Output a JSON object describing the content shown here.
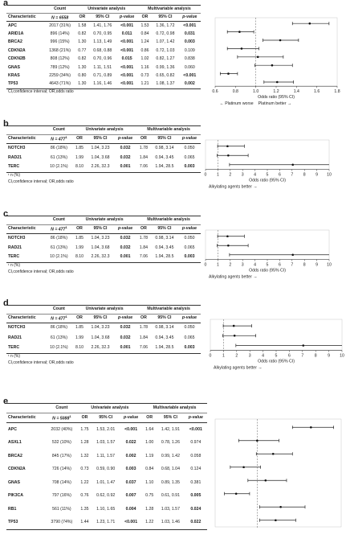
{
  "panels": [
    {
      "label": "a",
      "n_label": "N = 6558",
      "n_sup": "",
      "header": {
        "characteristic": "Characteristic",
        "count": "Count",
        "univariate": "Univariate analysis",
        "multivariable": "Multivariable analysis",
        "or": "OR",
        "ci": "95% CI",
        "pvalue": "p-value"
      },
      "rows": [
        {
          "name": "APC",
          "count": "2017 (31%)",
          "u_or": "1.58",
          "u_ci": "1.41, 1.76",
          "u_p": "<0.001",
          "u_p_bold": true,
          "m_or": "1.53",
          "m_ci": "1.36, 1.72",
          "m_p": "<0.001",
          "m_p_bold": true
        },
        {
          "name": "ARID1A",
          "count": "896 (14%)",
          "u_or": "0.82",
          "u_ci": "0.70, 0.95",
          "u_p": "0.011",
          "u_p_bold": true,
          "m_or": "0.84",
          "m_ci": "0.72, 0.98",
          "m_p": "0.031",
          "m_p_bold": true
        },
        {
          "name": "BRCA2",
          "count": "996 (15%)",
          "u_or": "1.30",
          "u_ci": "1.13, 1.49",
          "u_p": "<0.001",
          "u_p_bold": true,
          "m_or": "1.24",
          "m_ci": "1.07, 1.42",
          "m_p": "0.003",
          "m_p_bold": true
        },
        {
          "name": "CDKN2A",
          "count": "1368 (21%)",
          "u_or": "0.77",
          "u_ci": "0.68, 0.88",
          "u_p": "<0.001",
          "u_p_bold": true,
          "m_or": "0.86",
          "m_ci": "0.72, 1.03",
          "m_p": "0.109",
          "m_p_bold": false
        },
        {
          "name": "CDKN2B",
          "count": "808 (12%)",
          "u_or": "0.82",
          "u_ci": "0.70, 0.96",
          "u_p": "0.015",
          "u_p_bold": true,
          "m_or": "1.02",
          "m_ci": "0.82, 1.27",
          "m_p": "0.838",
          "m_p_bold": false
        },
        {
          "name": "GNAS",
          "count": "789 (12%)",
          "u_or": "1.30",
          "u_ci": "1.11, 1.51",
          "u_p": "<0.001",
          "u_p_bold": true,
          "m_or": "1.16",
          "m_ci": "0.99, 1.36",
          "m_p": "0.060",
          "m_p_bold": false
        },
        {
          "name": "KRAS",
          "count": "2259 (34%)",
          "u_or": "0.80",
          "u_ci": "0.71, 0.89",
          "u_p": "<0.001",
          "u_p_bold": true,
          "m_or": "0.73",
          "m_ci": "0.65, 0.82",
          "m_p": "<0.001",
          "m_p_bold": true
        },
        {
          "name": "TP53",
          "count": "4643 (71%)",
          "u_or": "1.30",
          "u_ci": "1.16, 1.46",
          "u_p": "<0.001",
          "u_p_bold": true,
          "m_or": "1.21",
          "m_ci": "1.08, 1.37",
          "m_p": "0.002",
          "m_p_bold": true
        }
      ],
      "footnotes": [
        "CI,confidence interval; OR,odds ratio"
      ],
      "axis_label": "Odds ratio (95% CI)",
      "direction_left": "← Platinum worse",
      "direction_right": "Platinum better →"
    },
    {
      "label": "b",
      "n_label": "N = 477",
      "n_sup": "1",
      "header": {
        "characteristic": "Characteristic",
        "count": "Count",
        "univariate": "Univariate analysis",
        "multivariable": "Multivariable analysis",
        "or": "OR",
        "ci": "95% CI",
        "pvalue": "p-value"
      },
      "rows": [
        {
          "name": "NOTCH3",
          "count": "86 (18%)",
          "u_or": "1.85",
          "u_ci": "1.04, 3.23",
          "u_p": "0.032",
          "u_p_bold": true,
          "m_or": "1.78",
          "m_ci": "0.98, 3.14",
          "m_p": "0.050",
          "m_p_bold": false
        },
        {
          "name": "RAD21",
          "count": "61 (13%)",
          "u_or": "1.99",
          "u_ci": "1.04, 3.68",
          "u_p": "0.032",
          "u_p_bold": true,
          "m_or": "1.84",
          "m_ci": "0.94, 3.45",
          "m_p": "0.065",
          "m_p_bold": false
        },
        {
          "name": "TERC",
          "count": "10 (2.1%)",
          "u_or": "8.10",
          "u_ci": "2.26, 32.3",
          "u_p": "0.001",
          "u_p_bold": true,
          "m_or": "7.06",
          "m_ci": "1.94, 28.5",
          "m_p": "0.003",
          "m_p_bold": true
        }
      ],
      "footnotes": [
        "¹ n (%)",
        "CI,confidence interval; OR,odds ratio"
      ],
      "axis_label": "Odds ratio (95% CI)",
      "direction_left": "",
      "direction_right": "Alkylating agents better →"
    },
    {
      "label": "c",
      "n_label": "N = 477",
      "n_sup": "1",
      "header": {
        "characteristic": "Characteristic",
        "count": "Count",
        "univariate": "Univariate analysis",
        "multivariable": "Multivariable analysis",
        "or": "OR",
        "ci": "95% CI",
        "pvalue": "p-value"
      },
      "rows": [
        {
          "name": "NOTCH3",
          "count": "86 (18%)",
          "u_or": "1.85",
          "u_ci": "1.04, 3.23",
          "u_p": "0.032",
          "u_p_bold": true,
          "m_or": "1.78",
          "m_ci": "0.98, 3.14",
          "m_p": "0.050",
          "m_p_bold": false
        },
        {
          "name": "RAD21",
          "count": "61 (13%)",
          "u_or": "1.99",
          "u_ci": "1.04, 3.68",
          "u_p": "0.032",
          "u_p_bold": true,
          "m_or": "1.84",
          "m_ci": "0.94, 3.45",
          "m_p": "0.065",
          "m_p_bold": false
        },
        {
          "name": "TERC",
          "count": "10 (2.1%)",
          "u_or": "8.10",
          "u_ci": "2.26, 32.3",
          "u_p": "0.001",
          "u_p_bold": true,
          "m_or": "7.06",
          "m_ci": "1.94, 28.5",
          "m_p": "0.003",
          "m_p_bold": true
        }
      ],
      "footnotes": [
        "¹ n (%)",
        "CI,confidence interval; OR,odds ratio"
      ],
      "axis_label": "Odds ratio (95% CI)",
      "direction_left": "",
      "direction_right": "Alkylating agents better →"
    },
    {
      "label": "d",
      "n_label": "N = 477",
      "n_sup": "1",
      "header": {
        "characteristic": "Characteristic",
        "count": "Count",
        "univariate": "Univariate analysis",
        "multivariable": "Multivariable analysis",
        "or": "OR",
        "ci": "95% CI",
        "pvalue": "p-value"
      },
      "rows": [
        {
          "name": "NOTCH3",
          "count": "86 (18%)",
          "u_or": "1.85",
          "u_ci": "1.04, 3.23",
          "u_p": "0.032",
          "u_p_bold": true,
          "m_or": "1.78",
          "m_ci": "0.98, 3.14",
          "m_p": "0.050",
          "m_p_bold": false
        },
        {
          "name": "RAD21",
          "count": "61 (13%)",
          "u_or": "1.99",
          "u_ci": "1.04, 3.68",
          "u_p": "0.032",
          "u_p_bold": true,
          "m_or": "1.84",
          "m_ci": "0.94, 3.45",
          "m_p": "0.065",
          "m_p_bold": false
        },
        {
          "name": "TERC",
          "count": "10 (2.1%)",
          "u_or": "8.10",
          "u_ci": "2.26, 32.3",
          "u_p": "0.001",
          "u_p_bold": true,
          "m_or": "7.06",
          "m_ci": "1.94, 28.5",
          "m_p": "0.003",
          "m_p_bold": true
        }
      ],
      "footnotes": [
        "¹ n (%)",
        "CI,confidence interval; OR,odds ratio"
      ],
      "axis_label": "Odds ratio (95% CI)",
      "direction_left": "",
      "direction_right": "Alkylating agents better →"
    },
    {
      "label": "e",
      "n_label": "N = 5088",
      "n_sup": "1",
      "header": {
        "characteristic": "Characteristic",
        "count": "Count",
        "univariate": "Univariate analysis",
        "multivariable": "Multivariable analysis",
        "or": "OR",
        "ci": "95% CI",
        "pvalue": "p-value"
      },
      "rows": [
        {
          "name": "APC",
          "count": "2032 (40%)",
          "u_or": "1.75",
          "u_ci": "1.53, 2.01",
          "u_p": "<0.001",
          "u_p_bold": true,
          "m_or": "1.64",
          "m_ci": "1.42, 1.91",
          "m_p": "<0.001",
          "m_p_bold": true
        },
        {
          "name": "ASXL1",
          "count": "532 (10%)",
          "u_or": "1.28",
          "u_ci": "1.03, 1.57",
          "u_p": "0.022",
          "u_p_bold": true,
          "m_or": "1.00",
          "m_ci": "0.78, 1.26",
          "m_p": "0.974",
          "m_p_bold": false
        },
        {
          "name": "BRCA2",
          "count": "845 (17%)",
          "u_or": "1.32",
          "u_ci": "1.11, 1.57",
          "u_p": "0.002",
          "u_p_bold": true,
          "m_or": "1.19",
          "m_ci": "0.99, 1.42",
          "m_p": "0.058",
          "m_p_bold": false
        },
        {
          "name": "CDKN2A",
          "count": "726 (14%)",
          "u_or": "0.73",
          "u_ci": "0.59, 0.90",
          "u_p": "0.003",
          "u_p_bold": true,
          "m_or": "0.84",
          "m_ci": "0.68, 1.04",
          "m_p": "0.124",
          "m_p_bold": false
        },
        {
          "name": "GNAS",
          "count": "708 (14%)",
          "u_or": "1.22",
          "u_ci": "1.01, 1.47",
          "u_p": "0.037",
          "u_p_bold": true,
          "m_or": "1.10",
          "m_ci": "0.89, 1.35",
          "m_p": "0.381",
          "m_p_bold": false
        },
        {
          "name": "PIK3CA",
          "count": "797 (16%)",
          "u_or": "0.76",
          "u_ci": "0.62, 0.92",
          "u_p": "0.007",
          "u_p_bold": true,
          "m_or": "0.75",
          "m_ci": "0.61, 0.91",
          "m_p": "0.005",
          "m_p_bold": true
        },
        {
          "name": "RB1",
          "count": "561 (11%)",
          "u_or": "1.35",
          "u_ci": "1.10, 1.65",
          "u_p": "0.004",
          "u_p_bold": true,
          "m_or": "1.28",
          "m_ci": "1.03, 1.57",
          "m_p": "0.024",
          "m_p_bold": true
        },
        {
          "name": "TP53",
          "count": "3790 (74%)",
          "u_or": "1.44",
          "u_ci": "1.23, 1.71",
          "u_p": "<0.001",
          "u_p_bold": true,
          "m_or": "1.22",
          "m_ci": "1.03, 1.46",
          "m_p": "0.022",
          "m_p_bold": true
        }
      ],
      "footnotes": [],
      "axis_label": "",
      "direction_left": "",
      "direction_right": ""
    }
  ],
  "chart_data": [
    {
      "type": "scatter",
      "subtype": "forest",
      "panel": "a",
      "xlabel": "Odds ratio (95% CI)",
      "xlim": [
        0.6,
        1.8
      ],
      "xticks": [
        0.6,
        0.8,
        1.0,
        1.2,
        1.4,
        1.6,
        1.8
      ],
      "reference_line": 1.0,
      "categories": [
        "APC",
        "ARID1A",
        "BRCA2",
        "CDKN2A",
        "CDKN2B",
        "GNAS",
        "KRAS",
        "TP53"
      ],
      "estimate": [
        1.53,
        0.84,
        1.24,
        0.86,
        1.02,
        1.16,
        0.73,
        1.21
      ],
      "ci_low": [
        1.36,
        0.72,
        1.07,
        0.72,
        0.82,
        0.99,
        0.65,
        1.08
      ],
      "ci_high": [
        1.72,
        0.98,
        1.42,
        1.03,
        1.27,
        1.36,
        0.82,
        1.37
      ]
    },
    {
      "type": "scatter",
      "subtype": "forest",
      "panel": "b",
      "xlabel": "Odds ratio (95% CI)",
      "xlim": [
        0,
        10
      ],
      "xticks": [
        0,
        1,
        2,
        3,
        4,
        5,
        6,
        7,
        8,
        9,
        10
      ],
      "reference_line": 1.0,
      "categories": [
        "NOTCH3",
        "RAD21",
        "TERC"
      ],
      "estimate": [
        1.78,
        1.84,
        7.06
      ],
      "ci_low": [
        0.98,
        0.94,
        1.94
      ],
      "ci_high": [
        3.14,
        3.45,
        28.5
      ]
    },
    {
      "type": "scatter",
      "subtype": "forest",
      "panel": "c",
      "xlabel": "Odds ratio (95% CI)",
      "xlim": [
        0,
        10
      ],
      "xticks": [
        0,
        1,
        2,
        3,
        4,
        5,
        6,
        7,
        8,
        9,
        10
      ],
      "reference_line": 1.0,
      "categories": [
        "NOTCH3",
        "RAD21",
        "TERC"
      ],
      "estimate": [
        1.78,
        1.84,
        7.06
      ],
      "ci_low": [
        0.98,
        0.94,
        1.94
      ],
      "ci_high": [
        3.14,
        3.45,
        28.5
      ]
    },
    {
      "type": "scatter",
      "subtype": "forest",
      "panel": "d",
      "xlabel": "Odds ratio (95% CI)",
      "xlim": [
        0,
        10
      ],
      "xticks": [
        0,
        1,
        2,
        3,
        4,
        5,
        6,
        7,
        8,
        9,
        10
      ],
      "reference_line": 1.0,
      "categories": [
        "NOTCH3",
        "RAD21",
        "TERC"
      ],
      "estimate": [
        1.78,
        1.84,
        7.06
      ],
      "ci_low": [
        0.98,
        0.94,
        1.94
      ],
      "ci_high": [
        3.14,
        3.45,
        28.5
      ]
    },
    {
      "type": "scatter",
      "subtype": "forest",
      "panel": "e",
      "xlim": [
        0.5,
        2.0
      ],
      "xticks": [],
      "reference_line": 1.0,
      "categories": [
        "APC",
        "ASXL1",
        "BRCA2",
        "CDKN2A",
        "GNAS",
        "PIK3CA",
        "RB1",
        "TP53"
      ],
      "estimate": [
        1.64,
        1.0,
        1.19,
        0.84,
        1.1,
        0.75,
        1.28,
        1.22
      ],
      "ci_low": [
        1.42,
        0.78,
        0.99,
        0.68,
        0.89,
        0.61,
        1.03,
        1.03
      ],
      "ci_high": [
        1.91,
        1.26,
        1.42,
        1.04,
        1.35,
        0.91,
        1.57,
        1.46
      ]
    }
  ]
}
